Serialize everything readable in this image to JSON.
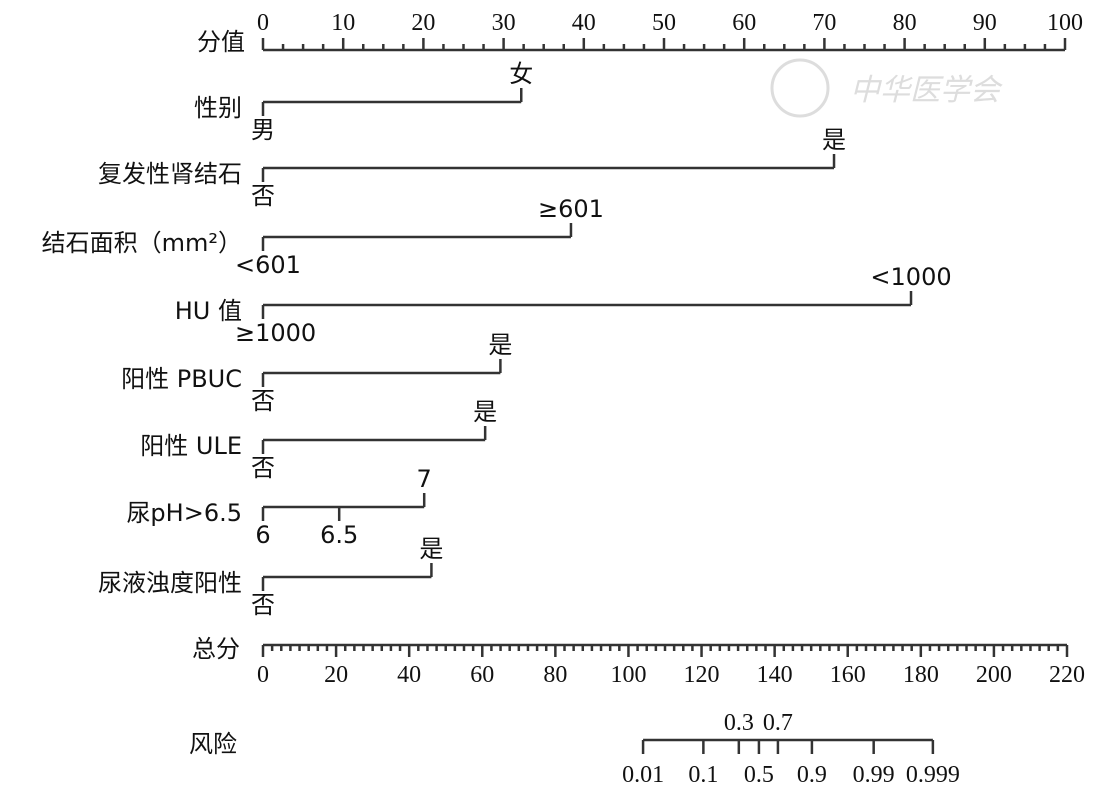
{
  "chart_data": {
    "type": "nomogram",
    "watermark": "中华医学会",
    "points_axis": {
      "label": "分值",
      "min": 0,
      "max": 100,
      "major_step": 10,
      "minor_step": 2.5
    },
    "variables": [
      {
        "name": "性别",
        "levels": [
          {
            "label": "男",
            "points": 0
          },
          {
            "label": "女",
            "points": 32.2
          }
        ]
      },
      {
        "name": "复发性肾结石",
        "levels": [
          {
            "label": "否",
            "points": 0
          },
          {
            "label": "是",
            "points": 71.2
          }
        ]
      },
      {
        "name": "结石面积（mm²）",
        "levels": [
          {
            "label": "<601",
            "points": 0
          },
          {
            "label": "≥601",
            "points": 38.4
          }
        ]
      },
      {
        "name": "HU 值",
        "levels": [
          {
            "label": "≥1000",
            "points": 0
          },
          {
            "label": "<1000",
            "points": 80.8
          }
        ]
      },
      {
        "name": "阳性 PBUC",
        "levels": [
          {
            "label": "否",
            "points": 0
          },
          {
            "label": "是",
            "points": 29.6
          }
        ]
      },
      {
        "name": "阳性 ULE",
        "levels": [
          {
            "label": "否",
            "points": 0
          },
          {
            "label": "是",
            "points": 27.7
          }
        ]
      },
      {
        "name": "尿pH>6.5",
        "levels": [
          {
            "label": "6",
            "points": 0
          },
          {
            "label": "6.5",
            "points": 9.5
          },
          {
            "label": "7",
            "points": 20.1
          }
        ]
      },
      {
        "name": "尿液浊度阳性",
        "levels": [
          {
            "label": "否",
            "points": 0
          },
          {
            "label": "是",
            "points": 21.0
          }
        ]
      }
    ],
    "total_axis": {
      "label": "总分",
      "min": 0,
      "max": 220,
      "major_step": 20,
      "minor_step": 2.5
    },
    "risk_axis": {
      "label": "风险",
      "ticks": [
        {
          "label": "0.01",
          "total_points": 104.0,
          "position": "below"
        },
        {
          "label": "0.1",
          "total_points": 120.5,
          "position": "below"
        },
        {
          "label": "0.3",
          "total_points": 130.2,
          "position": "above"
        },
        {
          "label": "0.5",
          "total_points": 135.7,
          "position": "below"
        },
        {
          "label": "0.7",
          "total_points": 140.9,
          "position": "above"
        },
        {
          "label": "0.9",
          "total_points": 150.2,
          "position": "below"
        },
        {
          "label": "0.99",
          "total_points": 167.1,
          "position": "below"
        },
        {
          "label": "0.999",
          "total_points": 183.3,
          "position": "below"
        }
      ]
    }
  }
}
